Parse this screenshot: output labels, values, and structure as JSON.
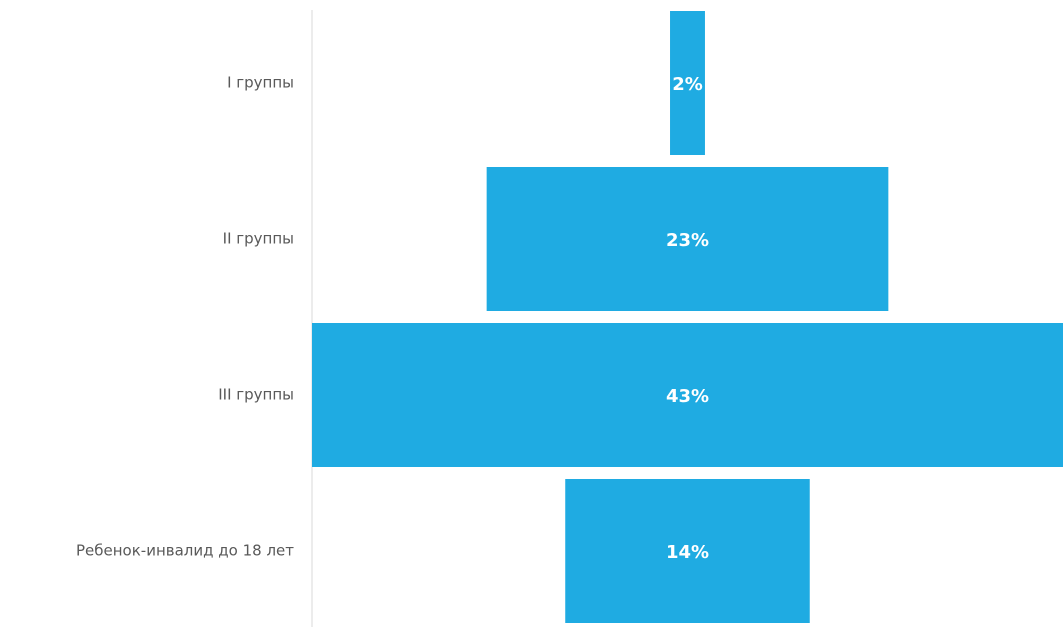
{
  "chart_data": {
    "type": "bar",
    "subtype": "funnel",
    "categories": [
      "I группы",
      "II группы",
      "III группы",
      "Ребенок-инвалид до 18 лет"
    ],
    "values": [
      2,
      23,
      43,
      14
    ],
    "data_labels": [
      "2%",
      "23%",
      "43%",
      "14%"
    ],
    "unit": "%",
    "title": "",
    "xlabel": "",
    "ylabel": "",
    "legend": "none",
    "grid": false,
    "colors": {
      "bar": "#1FABE2",
      "axis_line": "#D9D9D9",
      "category_text": "#595959",
      "data_label_text": "#FFFFFF"
    }
  }
}
